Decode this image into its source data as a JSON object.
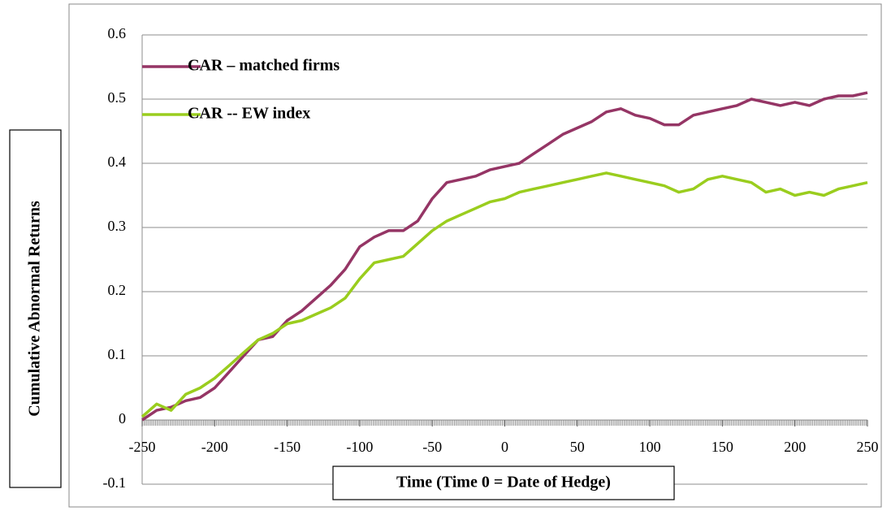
{
  "chart_data": {
    "type": "line",
    "x_label": "Time (Time 0 = Date of Hedge)",
    "y_label": "Cumulative Abnormal Returns",
    "x": [
      -250,
      -240,
      -230,
      -220,
      -210,
      -200,
      -190,
      -180,
      -170,
      -160,
      -150,
      -140,
      -130,
      -120,
      -110,
      -100,
      -90,
      -80,
      -70,
      -60,
      -50,
      -40,
      -30,
      -20,
      -10,
      0,
      10,
      20,
      30,
      40,
      50,
      60,
      70,
      80,
      90,
      100,
      110,
      120,
      130,
      140,
      150,
      160,
      170,
      180,
      190,
      200,
      210,
      220,
      230,
      240,
      250
    ],
    "series": [
      {
        "name": "CAR – matched firms",
        "color": "#953565",
        "values": [
          0.0,
          0.015,
          0.02,
          0.03,
          0.035,
          0.05,
          0.075,
          0.1,
          0.125,
          0.13,
          0.155,
          0.17,
          0.19,
          0.21,
          0.235,
          0.27,
          0.285,
          0.295,
          0.295,
          0.31,
          0.345,
          0.37,
          0.375,
          0.38,
          0.39,
          0.395,
          0.4,
          0.415,
          0.43,
          0.445,
          0.455,
          0.465,
          0.48,
          0.485,
          0.475,
          0.47,
          0.46,
          0.46,
          0.475,
          0.48,
          0.485,
          0.49,
          0.5,
          0.495,
          0.49,
          0.495,
          0.49,
          0.5,
          0.505,
          0.505,
          0.51
        ]
      },
      {
        "name": "CAR -- EW index",
        "color": "#9ACD1E",
        "values": [
          0.005,
          0.025,
          0.015,
          0.04,
          0.05,
          0.065,
          0.085,
          0.105,
          0.125,
          0.135,
          0.15,
          0.155,
          0.165,
          0.175,
          0.19,
          0.22,
          0.245,
          0.25,
          0.255,
          0.275,
          0.295,
          0.31,
          0.32,
          0.33,
          0.34,
          0.345,
          0.355,
          0.36,
          0.365,
          0.37,
          0.375,
          0.38,
          0.385,
          0.38,
          0.375,
          0.37,
          0.365,
          0.355,
          0.36,
          0.375,
          0.38,
          0.375,
          0.37,
          0.355,
          0.36,
          0.35,
          0.355,
          0.35,
          0.36,
          0.365,
          0.37
        ]
      }
    ],
    "xlim": [
      -250,
      250
    ],
    "xticks": [
      -250,
      -200,
      -150,
      -100,
      -50,
      0,
      50,
      100,
      150,
      200,
      250
    ],
    "ylim": [
      -0.1,
      0.6
    ],
    "yticks": [
      -0.1,
      0,
      0.1,
      0.2,
      0.3,
      0.4,
      0.5,
      0.6
    ],
    "grid": true,
    "legend": "top left"
  }
}
